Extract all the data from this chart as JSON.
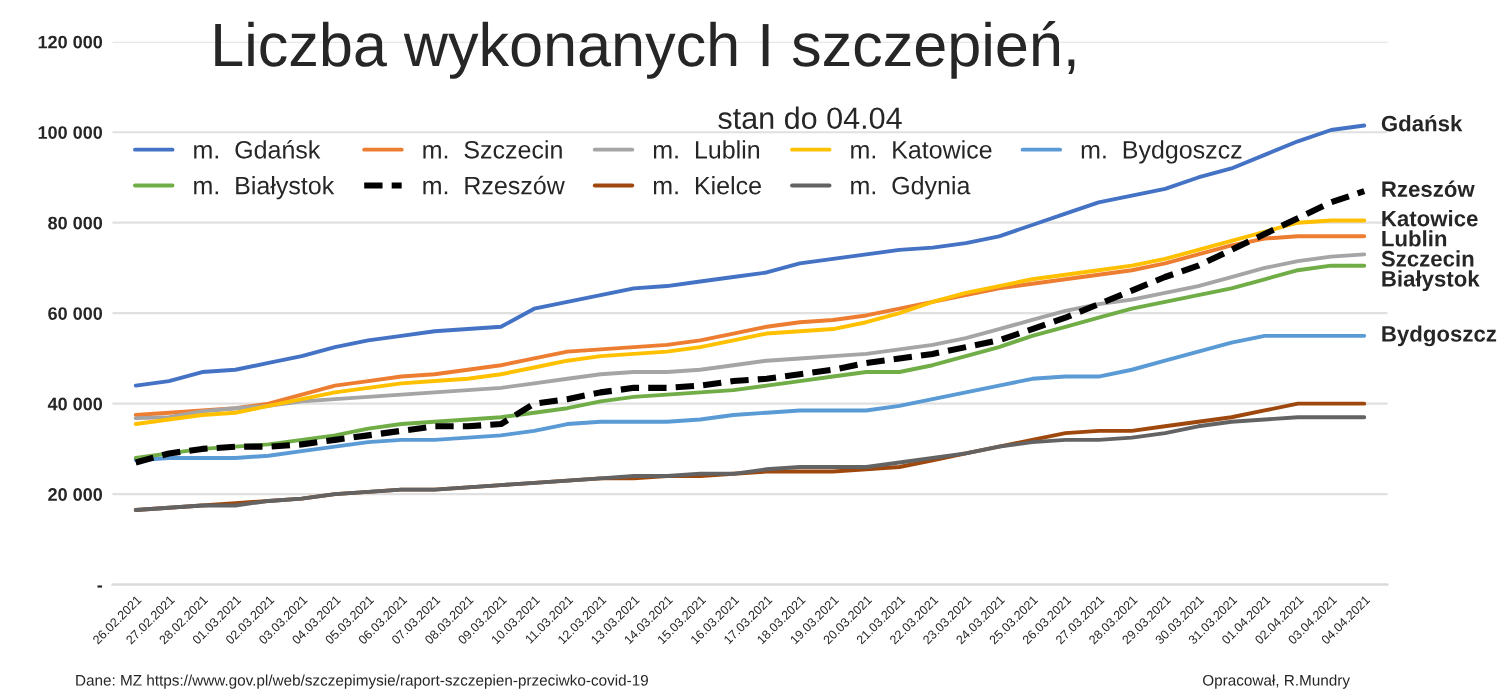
{
  "chart_data": {
    "type": "line",
    "title": "Liczba wykonanych I szczepień,",
    "subtitle": "stan do 04.04",
    "categories": [
      "26.02.2021",
      "27.02.2021",
      "28.02.2021",
      "01.03.2021",
      "02.03.2021",
      "03.03.2021",
      "04.03.2021",
      "05.03.2021",
      "06.03.2021",
      "07.03.2021",
      "08.03.2021",
      "09.03.2021",
      "10.03.2021",
      "11.03.2021",
      "12.03.2021",
      "13.03.2021",
      "14.03.2021",
      "15.03.2021",
      "16.03.2021",
      "17.03.2021",
      "18.03.2021",
      "19.03.2021",
      "20.03.2021",
      "21.03.2021",
      "22.03.2021",
      "23.03.2021",
      "24.03.2021",
      "25.03.2021",
      "26.03.2021",
      "27.03.2021",
      "28.03.2021",
      "29.03.2021",
      "30.03.2021",
      "31.03.2021",
      "01.04.2021",
      "02.04.2021",
      "03.04.2021",
      "04.04.2021"
    ],
    "series": [
      {
        "name": "m.  Gdańsk",
        "color": "#4472c4",
        "line_style": "solid",
        "values": [
          44000,
          45000,
          47000,
          47500,
          49000,
          50500,
          52500,
          54000,
          55000,
          56000,
          56500,
          57000,
          61000,
          62500,
          64000,
          65500,
          66000,
          67000,
          68000,
          69000,
          71000,
          72000,
          73000,
          74000,
          74500,
          75500,
          77000,
          79500,
          82000,
          84500,
          86000,
          87500,
          90000,
          92000,
          95000,
          98000,
          100500,
          101500
        ]
      },
      {
        "name": "m.  Szczecin",
        "color": "#ed7d31",
        "line_style": "solid",
        "values": [
          37500,
          38000,
          38500,
          39000,
          40000,
          42000,
          44000,
          45000,
          46000,
          46500,
          47500,
          48500,
          50000,
          51500,
          52000,
          52500,
          53000,
          54000,
          55500,
          57000,
          58000,
          58500,
          59500,
          61000,
          62500,
          64000,
          65500,
          66500,
          67500,
          68500,
          69500,
          71000,
          73000,
          75000,
          76500,
          77000,
          77000,
          77000
        ]
      },
      {
        "name": "m.  Lublin",
        "color": "#a5a5a5",
        "line_style": "solid",
        "values": [
          36800,
          37000,
          38300,
          39000,
          39500,
          40500,
          41000,
          41500,
          42000,
          42500,
          43000,
          43500,
          44500,
          45500,
          46500,
          47000,
          47000,
          47500,
          48500,
          49500,
          50000,
          50500,
          51000,
          52000,
          53000,
          54500,
          56500,
          58500,
          60500,
          62000,
          63000,
          64500,
          66000,
          68000,
          70000,
          71500,
          72500,
          73000
        ]
      },
      {
        "name": "m.  Katowice",
        "color": "#ffc000",
        "line_style": "solid",
        "values": [
          35500,
          36500,
          37500,
          38000,
          39500,
          41000,
          42500,
          43500,
          44500,
          45000,
          45500,
          46500,
          48000,
          49500,
          50500,
          51000,
          51500,
          52500,
          54000,
          55500,
          56000,
          56500,
          58000,
          60000,
          62500,
          64500,
          66000,
          67500,
          68500,
          69500,
          70500,
          72000,
          74000,
          76000,
          78000,
          80000,
          80500,
          80500
        ]
      },
      {
        "name": "m.  Bydgoszcz",
        "color": "#5b9bd5",
        "line_style": "solid",
        "values": [
          27500,
          28000,
          28000,
          28000,
          28500,
          29500,
          30500,
          31500,
          32000,
          32000,
          32500,
          33000,
          34000,
          35500,
          36000,
          36000,
          36000,
          36500,
          37500,
          38000,
          38500,
          38500,
          38500,
          39500,
          41000,
          42500,
          44000,
          45500,
          46000,
          46000,
          47500,
          49500,
          51500,
          53500,
          55000,
          55000,
          55000,
          55000
        ]
      },
      {
        "name": "m.  Białystok",
        "color": "#70ad47",
        "line_style": "solid",
        "values": [
          28000,
          29000,
          30000,
          30500,
          31000,
          32000,
          33000,
          34500,
          35500,
          36000,
          36500,
          37000,
          38000,
          39000,
          40500,
          41500,
          42000,
          42500,
          43000,
          44000,
          45000,
          46000,
          47000,
          47000,
          48500,
          50500,
          52500,
          55000,
          57000,
          59000,
          61000,
          62500,
          64000,
          65500,
          67500,
          69500,
          70500,
          70500
        ]
      },
      {
        "name": "m.  Rzeszów",
        "color": "#000000",
        "line_style": "dashed",
        "values": [
          27000,
          29000,
          30000,
          30500,
          30500,
          31000,
          32000,
          33000,
          34000,
          35000,
          35000,
          35500,
          40000,
          41000,
          42500,
          43500,
          43500,
          44000,
          45000,
          45500,
          46500,
          47500,
          49000,
          50000,
          51000,
          52500,
          54000,
          56500,
          59000,
          62000,
          65000,
          68000,
          70500,
          74000,
          77500,
          81000,
          84500,
          87000
        ]
      },
      {
        "name": "m.  Kielce",
        "color": "#9e480e",
        "line_style": "solid",
        "values": [
          16500,
          17000,
          17500,
          18000,
          18500,
          19000,
          20000,
          20500,
          21000,
          21000,
          21500,
          22000,
          22500,
          23000,
          23500,
          23500,
          24000,
          24000,
          24500,
          25000,
          25000,
          25000,
          25500,
          26000,
          27500,
          29000,
          30500,
          32000,
          33500,
          34000,
          34000,
          35000,
          36000,
          37000,
          38500,
          40000,
          40000,
          40000
        ]
      },
      {
        "name": "m.  Gdynia",
        "color": "#636363",
        "line_style": "solid",
        "values": [
          16500,
          17000,
          17500,
          17500,
          18500,
          19000,
          20000,
          20500,
          21000,
          21000,
          21500,
          22000,
          22500,
          23000,
          23500,
          24000,
          24000,
          24500,
          24500,
          25500,
          26000,
          26000,
          26000,
          27000,
          28000,
          29000,
          30500,
          31500,
          32000,
          32000,
          32500,
          33500,
          35000,
          36000,
          36500,
          37000,
          37000,
          37000
        ]
      }
    ],
    "ylim": [
      0,
      120000
    ],
    "yticks": [
      {
        "value": 0,
        "label": "-"
      },
      {
        "value": 20000,
        "label": "20 000"
      },
      {
        "value": 40000,
        "label": "40 000"
      },
      {
        "value": 60000,
        "label": "60 000"
      },
      {
        "value": 80000,
        "label": "80 000"
      },
      {
        "value": 100000,
        "label": "100 000"
      },
      {
        "value": 120000,
        "label": "120 000"
      }
    ],
    "grid": "y",
    "legend": "top left",
    "marker": "none",
    "annotations": [
      {
        "text": "Gdańsk",
        "x": "04.04.2021",
        "y": 101500
      },
      {
        "text": "Rzeszów",
        "x": "04.04.2021",
        "y": 87000
      },
      {
        "text": "Katowice",
        "x": "04.04.2021",
        "y": 80500
      },
      {
        "text": "Lublin",
        "x": "04.04.2021",
        "y": 77000
      },
      {
        "text": "Szczecin",
        "x": "04.04.2021",
        "y": 73000
      },
      {
        "text": "Białystok",
        "x": "04.04.2021",
        "y": 70500
      },
      {
        "text": "Bydgoszcz",
        "x": "04.04.2021",
        "y": 55000
      },
      "Dane: MZ https://www.gov.pl/web/szczepimysie/raport-szczepien-przeciwko-covid-19",
      "Opracował, R.Mundry"
    ]
  }
}
